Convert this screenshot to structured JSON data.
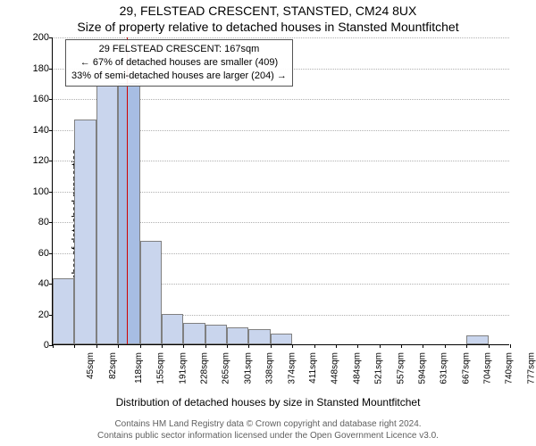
{
  "title_line1": "29, FELSTEAD CRESCENT, STANSTED, CM24 8UX",
  "title_line2": "Size of property relative to detached houses in Stansted Mountfitchet",
  "y_axis_label": "Number of detached properties",
  "x_axis_label": "Distribution of detached houses by size in Stansted Mountfitchet",
  "footer_line1": "Contains HM Land Registry data © Crown copyright and database right 2024.",
  "footer_line2": "Contains public sector information licensed under the Open Government Licence v3.0.",
  "chart": {
    "type": "histogram",
    "ylim": [
      0,
      200
    ],
    "ytick_step": 20,
    "grid_color": "#b0b0b0",
    "bar_fill": "#c9d5ed",
    "bar_border": "#808080",
    "highlight_fill": "#a7bde3",
    "marker_color": "#d00000",
    "marker_x_value": 167,
    "x_min": 45,
    "x_max": 795,
    "categories": [
      "45sqm",
      "82sqm",
      "118sqm",
      "155sqm",
      "191sqm",
      "228sqm",
      "265sqm",
      "301sqm",
      "338sqm",
      "374sqm",
      "411sqm",
      "448sqm",
      "484sqm",
      "521sqm",
      "557sqm",
      "594sqm",
      "631sqm",
      "667sqm",
      "704sqm",
      "740sqm",
      "777sqm"
    ],
    "values": [
      43,
      146,
      168,
      170,
      67,
      20,
      14,
      13,
      11,
      10,
      7,
      0,
      0,
      0,
      0,
      0,
      0,
      0,
      0,
      6,
      0
    ],
    "highlight_index": 3,
    "annotation": {
      "lines": [
        "29 FELSTEAD CRESCENT: 167sqm",
        "← 67% of detached houses are smaller (409)",
        "33% of semi-detached houses are larger (204) →"
      ]
    }
  }
}
